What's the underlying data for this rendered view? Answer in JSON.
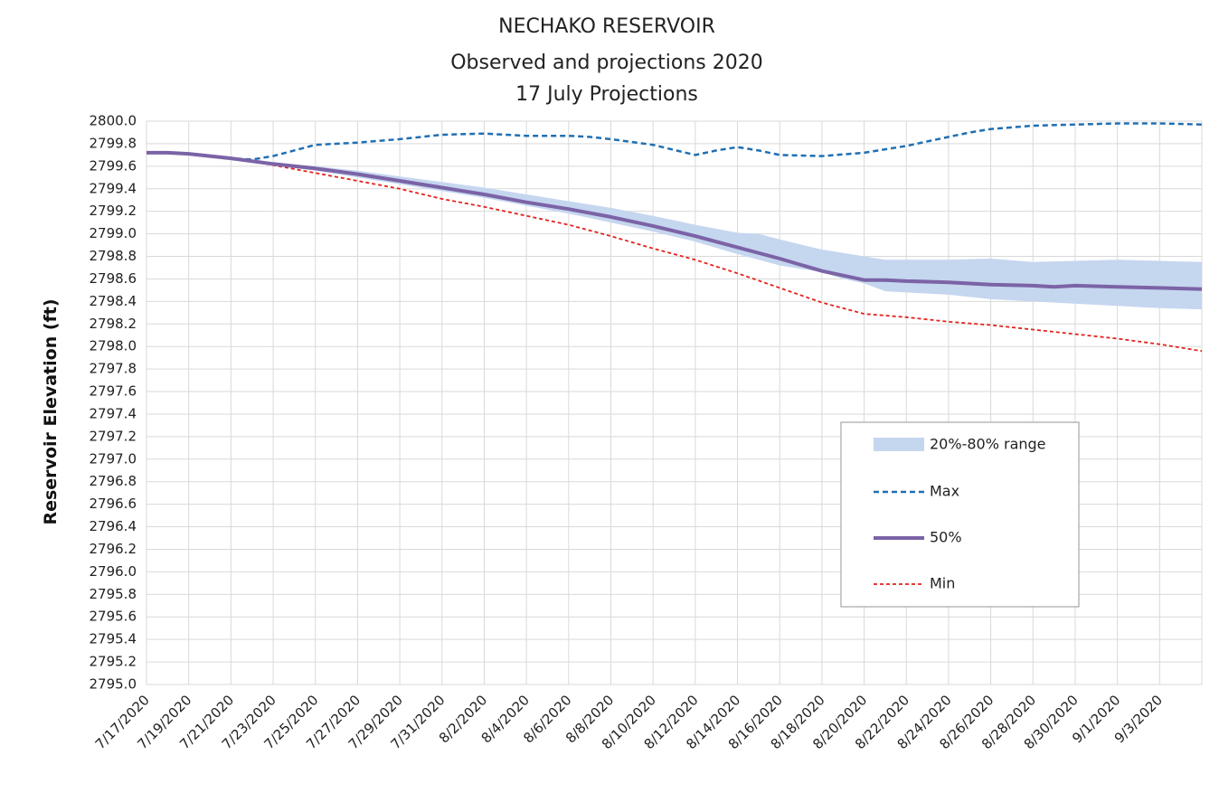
{
  "chart_data": {
    "type": "line",
    "title": [
      "NECHAKO RESERVOIR",
      "Observed and projections 2020",
      "17 July Projections"
    ],
    "ylabel": "Reservoir Elevation (ft)",
    "xlabel": "",
    "ylim": [
      2795.0,
      2800.0
    ],
    "y_tick_step": 0.2,
    "x_range": [
      "2020-07-17",
      "2020-09-05"
    ],
    "x_tick_labels": [
      "7/17/2020",
      "7/19/2020",
      "7/21/2020",
      "7/23/2020",
      "7/25/2020",
      "7/27/2020",
      "7/29/2020",
      "7/31/2020",
      "8/2/2020",
      "8/4/2020",
      "8/6/2020",
      "8/8/2020",
      "8/10/2020",
      "8/12/2020",
      "8/14/2020",
      "8/16/2020",
      "8/18/2020",
      "8/20/2020",
      "8/22/2020",
      "8/24/2020",
      "8/26/2020",
      "8/28/2020",
      "8/30/2020",
      "9/1/2020",
      "9/3/2020"
    ],
    "grid": true,
    "legend_position": "lower-right",
    "band": {
      "name": "20%-80% range",
      "color": "#c5d6ef",
      "x": [
        "2020-07-17",
        "2020-07-18",
        "2020-07-19",
        "2020-07-21",
        "2020-07-23",
        "2020-07-25",
        "2020-07-27",
        "2020-07-29",
        "2020-07-31",
        "2020-08-02",
        "2020-08-04",
        "2020-08-06",
        "2020-08-08",
        "2020-08-10",
        "2020-08-12",
        "2020-08-14",
        "2020-08-15",
        "2020-08-16",
        "2020-08-18",
        "2020-08-19",
        "2020-08-20",
        "2020-08-21",
        "2020-08-22",
        "2020-08-24",
        "2020-08-26",
        "2020-08-28",
        "2020-08-30",
        "2020-09-01",
        "2020-09-03",
        "2020-09-05"
      ],
      "low": [
        2799.72,
        2799.72,
        2799.71,
        2799.67,
        2799.61,
        2799.56,
        2799.5,
        2799.44,
        2799.38,
        2799.32,
        2799.25,
        2799.18,
        2799.1,
        2799.02,
        2798.93,
        2798.82,
        2798.77,
        2798.72,
        2798.66,
        2798.6,
        2798.56,
        2798.49,
        2798.48,
        2798.46,
        2798.42,
        2798.4,
        2798.38,
        2798.36,
        2798.34,
        2798.33
      ],
      "high": [
        2799.72,
        2799.72,
        2799.71,
        2799.67,
        2799.63,
        2799.6,
        2799.56,
        2799.51,
        2799.46,
        2799.41,
        2799.35,
        2799.29,
        2799.23,
        2799.16,
        2799.08,
        2799.01,
        2799.0,
        2798.95,
        2798.86,
        2798.83,
        2798.8,
        2798.77,
        2798.77,
        2798.77,
        2798.78,
        2798.75,
        2798.76,
        2798.77,
        2798.76,
        2798.75
      ]
    },
    "series": [
      {
        "name": "Max",
        "color": "#1f6fb2",
        "style": "dashed",
        "x": [
          "2020-07-17",
          "2020-07-18",
          "2020-07-19",
          "2020-07-20",
          "2020-07-21",
          "2020-07-22",
          "2020-07-23",
          "2020-07-24",
          "2020-07-25",
          "2020-07-27",
          "2020-07-29",
          "2020-07-31",
          "2020-08-02",
          "2020-08-04",
          "2020-08-06",
          "2020-08-07",
          "2020-08-08",
          "2020-08-10",
          "2020-08-12",
          "2020-08-13",
          "2020-08-14",
          "2020-08-15",
          "2020-08-16",
          "2020-08-18",
          "2020-08-20",
          "2020-08-22",
          "2020-08-24",
          "2020-08-25",
          "2020-08-26",
          "2020-08-28",
          "2020-08-30",
          "2020-09-01",
          "2020-09-03",
          "2020-09-05"
        ],
        "values": [
          2799.72,
          2799.72,
          2799.71,
          2799.69,
          2799.67,
          2799.66,
          2799.69,
          2799.74,
          2799.79,
          2799.81,
          2799.84,
          2799.88,
          2799.89,
          2799.87,
          2799.87,
          2799.86,
          2799.84,
          2799.79,
          2799.7,
          2799.74,
          2799.77,
          2799.74,
          2799.7,
          2799.69,
          2799.72,
          2799.78,
          2799.86,
          2799.9,
          2799.93,
          2799.96,
          2799.97,
          2799.98,
          2799.98,
          2799.97
        ]
      },
      {
        "name": "50%",
        "color": "#7b63a6",
        "style": "solid",
        "x": [
          "2020-07-17",
          "2020-07-18",
          "2020-07-19",
          "2020-07-21",
          "2020-07-23",
          "2020-07-25",
          "2020-07-27",
          "2020-07-29",
          "2020-07-31",
          "2020-08-02",
          "2020-08-04",
          "2020-08-06",
          "2020-08-08",
          "2020-08-10",
          "2020-08-12",
          "2020-08-14",
          "2020-08-16",
          "2020-08-18",
          "2020-08-20",
          "2020-08-21",
          "2020-08-22",
          "2020-08-24",
          "2020-08-26",
          "2020-08-28",
          "2020-08-29",
          "2020-08-30",
          "2020-09-01",
          "2020-09-03",
          "2020-09-05"
        ],
        "values": [
          2799.72,
          2799.72,
          2799.71,
          2799.67,
          2799.62,
          2799.58,
          2799.53,
          2799.47,
          2799.41,
          2799.35,
          2799.28,
          2799.22,
          2799.15,
          2799.07,
          2798.98,
          2798.88,
          2798.78,
          2798.67,
          2798.59,
          2798.59,
          2798.58,
          2798.57,
          2798.55,
          2798.54,
          2798.53,
          2798.54,
          2798.53,
          2798.52,
          2798.51
        ]
      },
      {
        "name": "Min",
        "color": "#e3221e",
        "style": "dashed",
        "x": [
          "2020-07-17",
          "2020-07-18",
          "2020-07-19",
          "2020-07-21",
          "2020-07-23",
          "2020-07-25",
          "2020-07-27",
          "2020-07-29",
          "2020-07-31",
          "2020-08-02",
          "2020-08-04",
          "2020-08-06",
          "2020-08-08",
          "2020-08-10",
          "2020-08-12",
          "2020-08-14",
          "2020-08-16",
          "2020-08-18",
          "2020-08-20",
          "2020-08-22",
          "2020-08-24",
          "2020-08-26",
          "2020-08-28",
          "2020-08-30",
          "2020-09-01",
          "2020-09-03",
          "2020-09-05"
        ],
        "values": [
          2799.72,
          2799.72,
          2799.71,
          2799.67,
          2799.61,
          2799.54,
          2799.47,
          2799.4,
          2799.31,
          2799.24,
          2799.16,
          2799.08,
          2798.98,
          2798.87,
          2798.77,
          2798.65,
          2798.52,
          2798.39,
          2798.29,
          2798.26,
          2798.22,
          2798.19,
          2798.15,
          2798.11,
          2798.07,
          2798.02,
          2797.96
        ]
      }
    ]
  }
}
